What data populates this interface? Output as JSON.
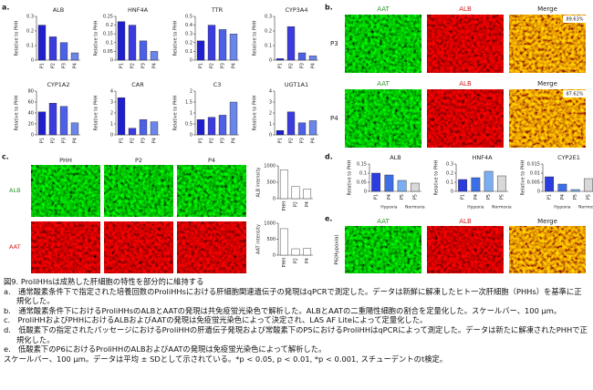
{
  "chart_data": [
    {
      "type": "bar",
      "title": "ALB",
      "y_label": "Relative to PHH",
      "categories": [
        "P1",
        "P2",
        "P3",
        "P4"
      ],
      "values": [
        0.24,
        0.16,
        0.12,
        0.05
      ],
      "colors": [
        "#1f1fd0",
        "#3b3be0",
        "#4d61e6",
        "#6a86ea"
      ],
      "ylim": [
        0,
        0.3
      ],
      "yticks": [
        0,
        0.1,
        0.2,
        0.3
      ]
    },
    {
      "type": "bar",
      "title": "HNF4A",
      "y_label": "Relative to PHH",
      "categories": [
        "P1",
        "P2",
        "P3",
        "P4"
      ],
      "values": [
        0.22,
        0.2,
        0.11,
        0.05
      ],
      "colors": [
        "#1f1fd0",
        "#3b3be0",
        "#4d61e6",
        "#6a86ea"
      ],
      "ylim": [
        0,
        0.25
      ],
      "yticks": [
        0,
        0.05,
        0.1,
        0.15,
        0.2,
        0.25
      ]
    },
    {
      "type": "bar",
      "title": "TTR",
      "y_label": "Relative to PHH",
      "categories": [
        "P1",
        "P2",
        "P3",
        "P4"
      ],
      "values": [
        0.22,
        0.4,
        0.35,
        0.3
      ],
      "colors": [
        "#1f1fd0",
        "#3b3be0",
        "#4d61e6",
        "#6a86ea"
      ],
      "ylim": [
        0,
        0.5
      ],
      "yticks": [
        0,
        0.1,
        0.2,
        0.3,
        0.4,
        0.5
      ]
    },
    {
      "type": "bar",
      "title": "CYP3A4",
      "y_label": "Relative to PHH",
      "categories": [
        "P1",
        "P2",
        "P3",
        "P4"
      ],
      "values": [
        0.01,
        0.23,
        0.05,
        0.03
      ],
      "colors": [
        "#1f1fd0",
        "#3b3be0",
        "#4d61e6",
        "#6a86ea"
      ],
      "ylim": [
        0,
        0.3
      ],
      "yticks": [
        0,
        0.1,
        0.2,
        0.3
      ]
    },
    {
      "type": "bar",
      "title": "CYP1A2",
      "y_label": "Relative to PHH",
      "categories": [
        "P1",
        "P2",
        "P3",
        "P4"
      ],
      "values": [
        42,
        58,
        52,
        22
      ],
      "colors": [
        "#1f1fd0",
        "#3b3be0",
        "#4d61e6",
        "#6a86ea"
      ],
      "ylim": [
        0,
        80
      ],
      "yticks": [
        0,
        20,
        40,
        60,
        80
      ]
    },
    {
      "type": "bar",
      "title": "CAR",
      "y_label": "Relative to PHH",
      "categories": [
        "P1",
        "P2",
        "P3",
        "P4"
      ],
      "values": [
        3.4,
        0.6,
        1.4,
        1.2
      ],
      "colors": [
        "#1f1fd0",
        "#3b3be0",
        "#4d61e6",
        "#6a86ea"
      ],
      "ylim": [
        0,
        4
      ],
      "yticks": [
        0,
        1,
        2,
        3,
        4
      ]
    },
    {
      "type": "bar",
      "title": "C3",
      "y_label": "Relative to PHH",
      "categories": [
        "P1",
        "P2",
        "P3",
        "P4"
      ],
      "values": [
        0.7,
        0.8,
        0.9,
        1.5
      ],
      "colors": [
        "#1f1fd0",
        "#3b3be0",
        "#4d61e6",
        "#6a86ea"
      ],
      "ylim": [
        0,
        2
      ],
      "yticks": [
        0,
        0.5,
        1,
        1.5,
        2
      ]
    },
    {
      "type": "bar",
      "title": "UGT1A1",
      "y_label": "Relative to PHH",
      "categories": [
        "P1",
        "P2",
        "P3",
        "P4"
      ],
      "values": [
        0.4,
        2.1,
        1.1,
        1.3
      ],
      "colors": [
        "#1f1fd0",
        "#3b3be0",
        "#4d61e6",
        "#6a86ea"
      ],
      "ylim": [
        0,
        4
      ],
      "yticks": [
        0,
        1,
        2,
        3,
        4
      ]
    },
    {
      "type": "bar",
      "y_label": "ALB intensity",
      "categories": [
        "PHH",
        "P2",
        "P4"
      ],
      "values": [
        880,
        370,
        290
      ],
      "colors": [
        "#ffffff",
        "#ffffff",
        "#ffffff"
      ],
      "ylim": [
        0,
        1000
      ],
      "yticks": [
        0,
        500,
        1000
      ]
    },
    {
      "type": "bar",
      "y_label": "AAT intensity",
      "categories": [
        "PHH",
        "P2",
        "P4"
      ],
      "values": [
        830,
        200,
        210
      ],
      "colors": [
        "#ffffff",
        "#ffffff",
        "#ffffff"
      ],
      "ylim": [
        0,
        1000
      ],
      "yticks": [
        0,
        500,
        1000
      ]
    },
    {
      "type": "bar",
      "title": "ALB",
      "y_label": "Relative to PHH",
      "categories": [
        "P1",
        "P4",
        "P5",
        "P5"
      ],
      "groups": [
        "Hypoxia",
        "Normoxia"
      ],
      "values": [
        0.1,
        0.09,
        0.06,
        0.045
      ],
      "colors": [
        "#2c3de0",
        "#3c6ee6",
        "#7aaef0",
        "#d8d8d8"
      ],
      "ylim": [
        0,
        0.15
      ],
      "yticks": [
        0,
        0.05,
        0.1,
        0.15
      ]
    },
    {
      "type": "bar",
      "title": "HNF4A",
      "y_label": "Relative to PHH",
      "categories": [
        "P1",
        "P4",
        "P5",
        "P5"
      ],
      "groups": [
        "Hypoxia",
        "Normoxia"
      ],
      "values": [
        0.13,
        0.15,
        0.22,
        0.17
      ],
      "colors": [
        "#2c3de0",
        "#3c6ee6",
        "#7aaef0",
        "#d8d8d8"
      ],
      "ylim": [
        0,
        0.3
      ],
      "yticks": [
        0,
        0.1,
        0.2,
        0.3
      ]
    },
    {
      "type": "bar",
      "title": "CYP2E1",
      "y_label": "Relative to PHH",
      "categories": [
        "P1",
        "P4",
        "P5",
        "P5"
      ],
      "groups": [
        "Hypoxia",
        "Normoxia"
      ],
      "values": [
        0.008,
        0.004,
        0.001,
        0.007
      ],
      "colors": [
        "#2c3de0",
        "#3c6ee6",
        "#7aaef0",
        "#d8d8d8"
      ],
      "ylim": [
        0,
        0.015
      ],
      "yticks": [
        0,
        0.005,
        0.01,
        0.015
      ]
    }
  ],
  "figure": {
    "panel_labels": [
      "a.",
      "b.",
      "c.",
      "d.",
      "e."
    ],
    "b": {
      "columns": [
        "AAT",
        "ALB",
        "Merge"
      ],
      "rows": [
        "P3",
        "P4"
      ],
      "percentages": [
        "89.63%",
        "87.62%"
      ]
    },
    "c": {
      "columns": [
        "PHH",
        "P2",
        "P4"
      ],
      "rows": [
        "ALB",
        "AAT"
      ]
    },
    "e": {
      "columns": [
        "AAT",
        "ALB",
        "Merge"
      ],
      "row": "P6(Hypoxia)"
    }
  },
  "caption": {
    "title": "図9. ProliHHsは成熟した肝細胞の特性を部分的に維持する",
    "items": [
      "a.　通常酸素条件下で指定された培養回数のProliHHsにおける肝細胞関連遺伝子の発現はqPCRで測定した。データは新鮮に解凍したヒト一次肝細胞（PHHs）を基準に正規化した。",
      "b.　通常酸素条件下におけるProliHHsのALBとAATの発現は共免疫蛍光染色で解析した。ALBとAATの二重陽性細胞の割合を定量化した。スケールバー、100 μm。",
      "c.　ProliHHおよびPHHにおけるALBおよびAATの発現は免疫蛍光染色によって決定され、LAS AF Liteによって定量化した。",
      "d.　低酸素下の指定されたパッセージにおけるProliHHの肝遺伝子発現および常酸素下のP5におけるProliHHはqPCRによって測定した。データは新たに解凍されたPHHで正規化した。",
      "e.　低酸素下のP6におけるProliHHのALBおよびAATの発現は免疫蛍光染色によって解析した。"
    ],
    "footer": "スケールバー、100 μm。データは平均 ± SDとして示されている。*p < 0.05, p < 0.01, *p < 0.001, スチューデントのt検定。"
  }
}
